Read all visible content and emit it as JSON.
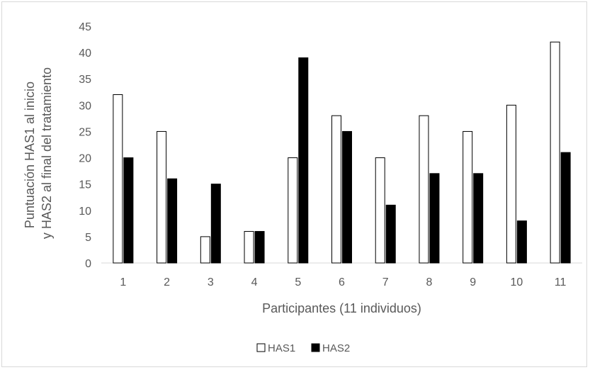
{
  "chart_data": {
    "type": "bar",
    "categories": [
      "1",
      "2",
      "3",
      "4",
      "5",
      "6",
      "7",
      "8",
      "9",
      "10",
      "11"
    ],
    "series": [
      {
        "name": "HAS1",
        "values": [
          32,
          25,
          5,
          6,
          20,
          28,
          20,
          28,
          25,
          30,
          42
        ]
      },
      {
        "name": "HAS2",
        "values": [
          20,
          16,
          15,
          6,
          39,
          25,
          11,
          17,
          17,
          8,
          21
        ]
      }
    ],
    "title": "",
    "xlabel": "Participantes (11 individuos)",
    "ylabel_lines": [
      "Puntuación HAS1 al inicio",
      "y HAS2 al final del tratamiento"
    ],
    "ylim": [
      0,
      45
    ],
    "yticks": [
      0,
      5,
      10,
      15,
      20,
      25,
      30,
      35,
      40,
      45
    ],
    "grid": false,
    "legend_position": "bottom",
    "colors": {
      "HAS1": "#ffffff",
      "HAS2": "#000000",
      "axis": "#d9d9d9",
      "text": "#595959"
    }
  }
}
